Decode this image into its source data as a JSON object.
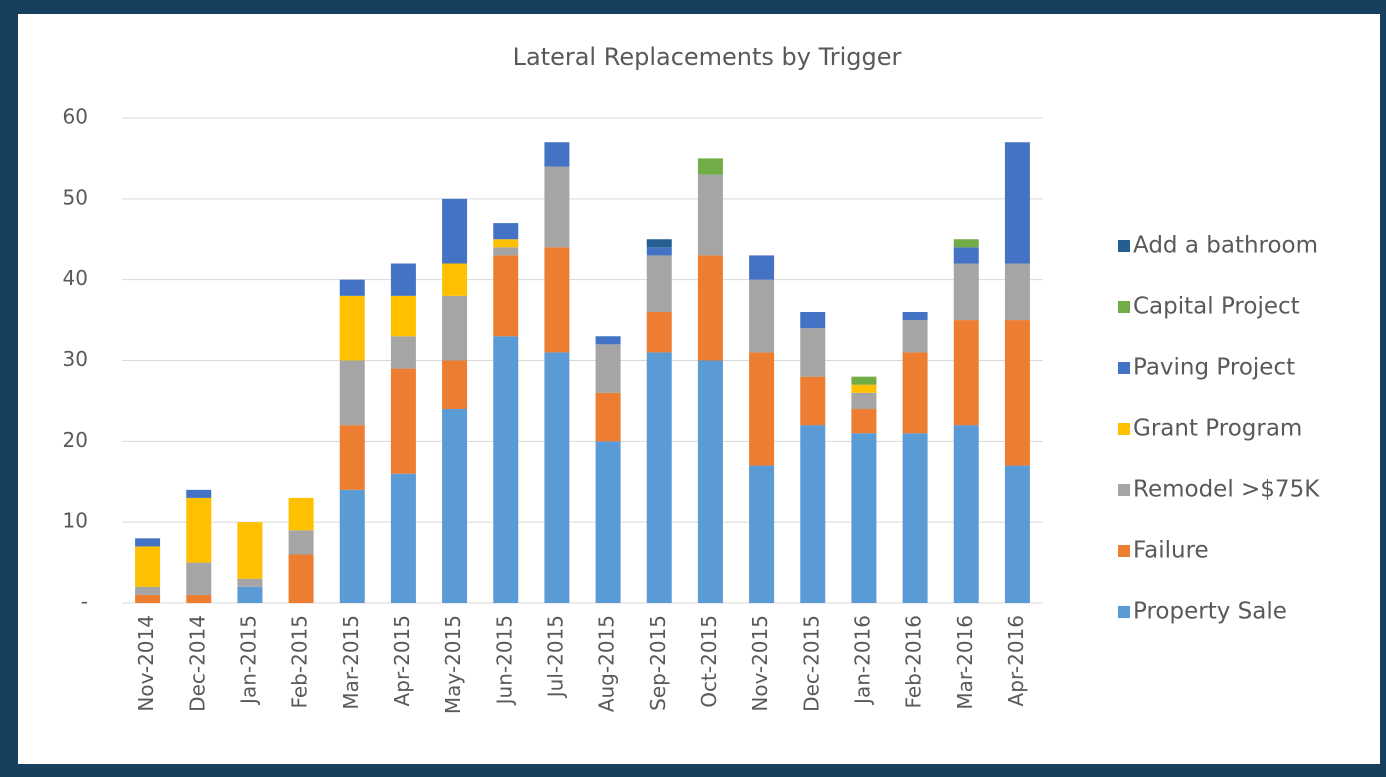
{
  "chart_data": {
    "type": "bar",
    "stacked": true,
    "title": "Lateral Replacements by Trigger",
    "categories": [
      "Nov-2014",
      "Dec-2014",
      "Jan-2015",
      "Feb-2015",
      "Mar-2015",
      "Apr-2015",
      "May-2015",
      "Jun-2015",
      "Jul-2015",
      "Aug-2015",
      "Sep-2015",
      "Oct-2015",
      "Nov-2015",
      "Dec-2015",
      "Jan-2016",
      "Feb-2016",
      "Mar-2016",
      "Apr-2016"
    ],
    "series": [
      {
        "name": "Property Sale",
        "color": "#5b9bd5",
        "values": [
          0,
          0,
          2,
          0,
          14,
          16,
          24,
          33,
          31,
          20,
          31,
          30,
          17,
          22,
          21,
          21,
          22,
          17
        ]
      },
      {
        "name": "Failure",
        "color": "#ed7d31",
        "values": [
          1,
          1,
          0,
          6,
          8,
          13,
          6,
          10,
          13,
          6,
          5,
          13,
          14,
          6,
          3,
          10,
          13,
          18
        ]
      },
      {
        "name": "Remodel >$75K",
        "color": "#a5a5a5",
        "values": [
          1,
          4,
          1,
          3,
          8,
          4,
          8,
          1,
          10,
          6,
          7,
          10,
          9,
          6,
          2,
          4,
          7,
          7
        ]
      },
      {
        "name": "Grant Program",
        "color": "#ffc000",
        "values": [
          5,
          8,
          7,
          4,
          8,
          5,
          4,
          1,
          0,
          0,
          0,
          0,
          0,
          0,
          1,
          0,
          0,
          0
        ]
      },
      {
        "name": "Paving Project",
        "color": "#4472c4",
        "values": [
          1,
          1,
          0,
          0,
          2,
          4,
          8,
          2,
          3,
          1,
          1,
          0,
          3,
          2,
          0,
          1,
          2,
          15
        ]
      },
      {
        "name": "Capital Project",
        "color": "#70ad47",
        "values": [
          0,
          0,
          0,
          0,
          0,
          0,
          0,
          0,
          0,
          0,
          0,
          2,
          0,
          0,
          1,
          0,
          1,
          0
        ]
      },
      {
        "name": "Add a bathroom",
        "color": "#255e91",
        "values": [
          0,
          0,
          0,
          0,
          0,
          0,
          0,
          0,
          0,
          0,
          1,
          0,
          0,
          0,
          0,
          0,
          0,
          0
        ]
      }
    ],
    "ylim": [
      0,
      60
    ],
    "yticks": [
      {
        "value": 0,
        "label": "-"
      },
      10,
      20,
      30,
      40,
      50,
      60
    ],
    "grid": true,
    "legend": "right"
  }
}
